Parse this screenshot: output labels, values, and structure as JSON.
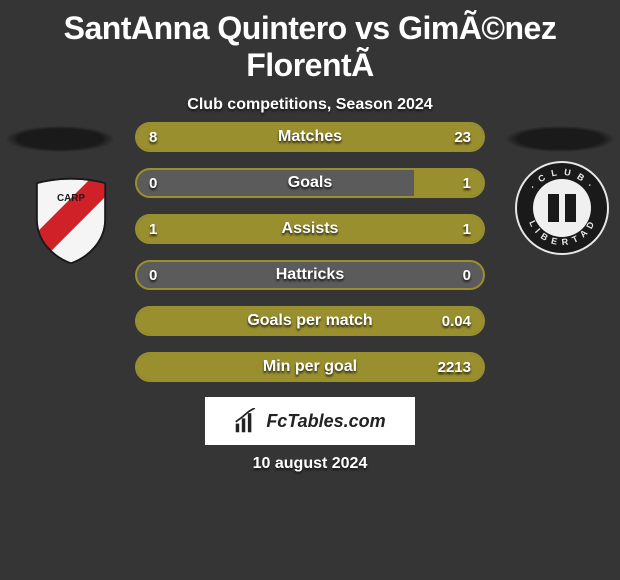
{
  "title": "SantAnna Quintero vs GimÃ©nez FlorentÃ",
  "subtitle": "Club competitions, Season 2024",
  "footer_date": "10 august 2024",
  "logo_text": "FcTables.com",
  "colors": {
    "background": "#353535",
    "bar_border": "#9a8f2f",
    "bar_fill": "#9a8f2f",
    "bar_track": "#5b5b5b",
    "text": "#ffffff"
  },
  "stats": [
    {
      "label": "Matches",
      "left_val": "8",
      "right_val": "23",
      "left_pct": 8,
      "right_pct": 92
    },
    {
      "label": "Goals",
      "left_val": "0",
      "right_val": "1",
      "left_pct": 0,
      "right_pct": 20
    },
    {
      "label": "Assists",
      "left_val": "1",
      "right_val": "1",
      "left_pct": 50,
      "right_pct": 50
    },
    {
      "label": "Hattricks",
      "left_val": "0",
      "right_val": "0",
      "left_pct": 0,
      "right_pct": 0
    },
    {
      "label": "Goals per match",
      "left_val": "",
      "right_val": "0.04",
      "left_pct": 0,
      "right_pct": 100
    },
    {
      "label": "Min per goal",
      "left_val": "",
      "right_val": "2213",
      "left_pct": 0,
      "right_pct": 100
    }
  ],
  "badges": {
    "left": {
      "name": "river-plate-badge",
      "bg": "#f5f5f5",
      "stripe": "#d02028",
      "text": "CARP"
    },
    "right": {
      "name": "libertad-badge",
      "bg": "#1a1a1a",
      "ring": "#f0f0f0",
      "text": "CLUB LIBERTAD"
    }
  }
}
